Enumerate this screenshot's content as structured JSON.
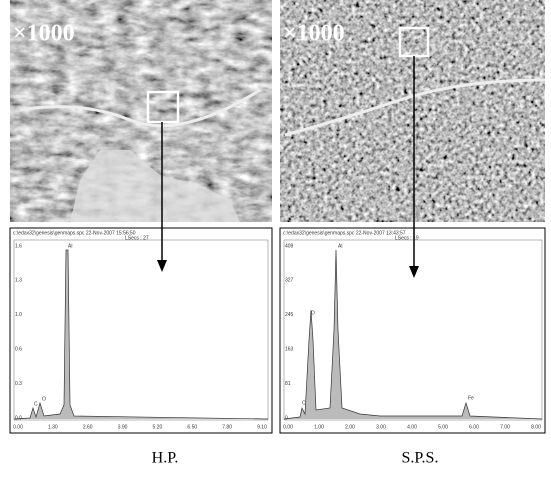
{
  "panels": [
    {
      "magnification": "×1000",
      "spectrum": {
        "header": "c:\\edax32\\genesis\\genmaps.spc  22-Nov-2007 15:56:50",
        "lsecs": "LSecs : 27",
        "yticks": [
          "1.6",
          "1.3",
          "1.0",
          "0.6",
          "0.3",
          "0.0"
        ],
        "xticks": [
          "0.00",
          "1.30",
          "2.60",
          "3.90",
          "5.20",
          "6.50",
          "7.80",
          "9.10"
        ],
        "peaks": [
          "Al",
          "O",
          "C"
        ]
      },
      "caption": "H.P."
    },
    {
      "magnification": "×1000",
      "spectrum": {
        "header": "c:\\edax32\\genesis\\genmaps.spc  22-Nov-2007 13:43:57",
        "lsecs": "LSecs : 19",
        "yticks": [
          "409",
          "327",
          "245",
          "163",
          "81",
          "0"
        ],
        "xticks": [
          "0.00",
          "1.00",
          "2.00",
          "3.00",
          "4.00",
          "5.00",
          "6.00",
          "7.00",
          "8.00"
        ],
        "peaks": [
          "Al",
          "O",
          "C",
          "Fe"
        ]
      },
      "caption": "S.P.S."
    }
  ]
}
